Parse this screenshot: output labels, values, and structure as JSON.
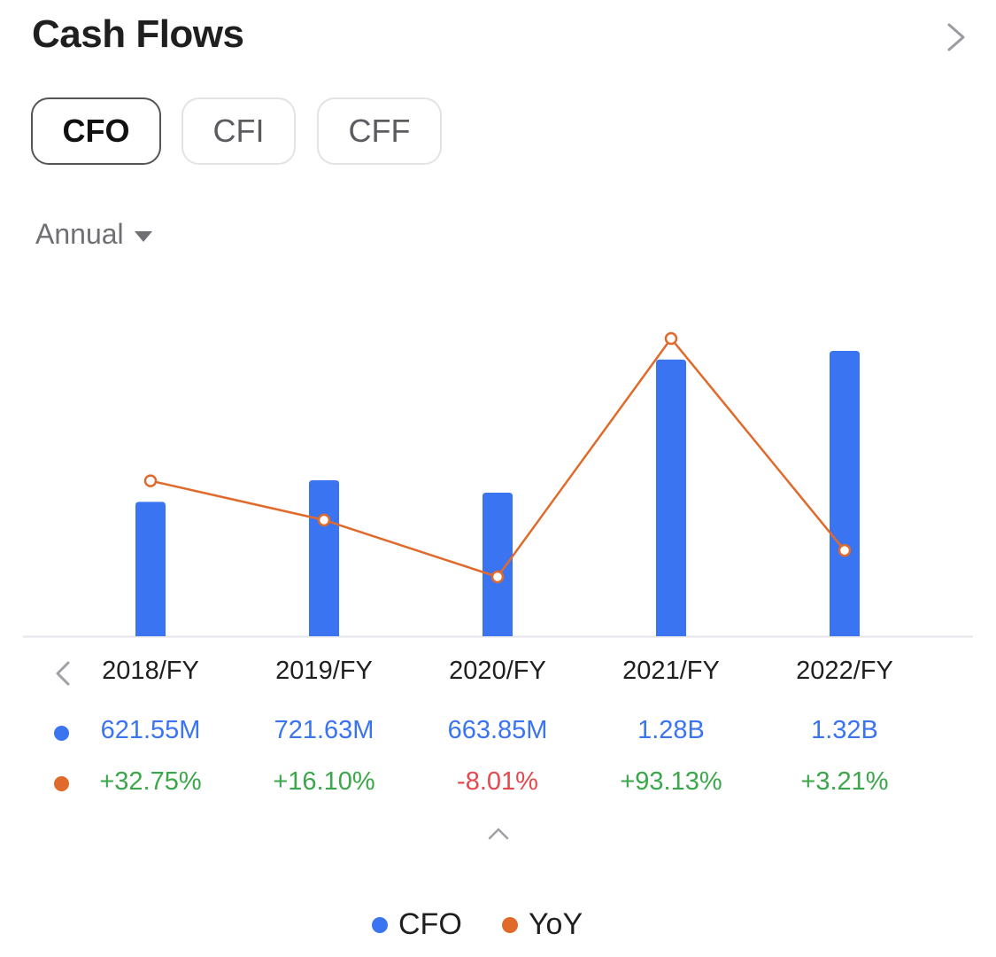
{
  "header": {
    "title": "Cash Flows"
  },
  "tabs": [
    {
      "label": "CFO",
      "active": true
    },
    {
      "label": "CFI",
      "active": false
    },
    {
      "label": "CFF",
      "active": false
    }
  ],
  "period": {
    "label": "Annual"
  },
  "colors": {
    "cfo": "#3a74f0",
    "yoy": "#e06a2b",
    "positive": "#3aa84a",
    "negative": "#e5484d"
  },
  "icons": {
    "more": "chevron-right-icon",
    "prev": "chevron-left-icon",
    "collapse": "chevron-up-icon",
    "dropdown": "caret-down-icon"
  },
  "table": {
    "years": [
      "2018/FY",
      "2019/FY",
      "2020/FY",
      "2021/FY",
      "2022/FY"
    ],
    "cfo_labels": [
      "621.55M",
      "721.63M",
      "663.85M",
      "1.28B",
      "1.32B"
    ],
    "yoy_labels": [
      "+32.75%",
      "+16.10%",
      "-8.01%",
      "+93.13%",
      "+3.21%"
    ]
  },
  "legend": {
    "cfo": "CFO",
    "yoy": "YoY"
  },
  "chart_data": {
    "type": "bar",
    "categories": [
      "2018/FY",
      "2019/FY",
      "2020/FY",
      "2021/FY",
      "2022/FY"
    ],
    "series": [
      {
        "name": "CFO",
        "type": "bar",
        "values": [
          621.55,
          721.63,
          663.85,
          1280,
          1320
        ],
        "unit": "M"
      },
      {
        "name": "YoY",
        "type": "line",
        "values": [
          32.75,
          16.1,
          -8.01,
          93.13,
          3.21
        ],
        "unit": "%"
      }
    ],
    "grid": false,
    "legend_position": "bottom-center"
  }
}
